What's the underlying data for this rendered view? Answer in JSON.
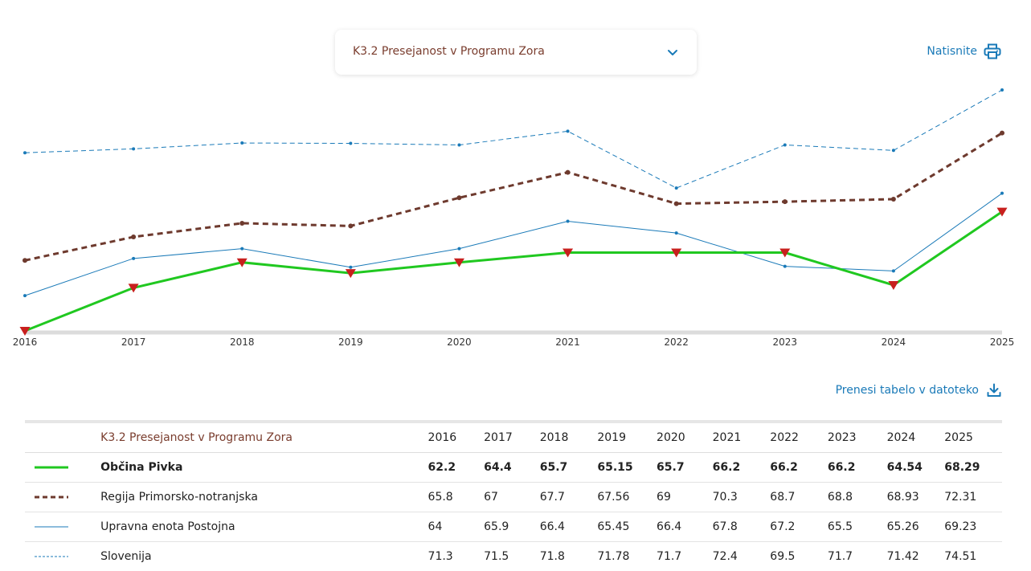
{
  "dropdown": {
    "label": "K3.2 Presejanost v Programu Zora",
    "chevron_icon": "chevron-down-icon"
  },
  "print": {
    "label": "Natisnite",
    "icon": "printer-icon"
  },
  "download": {
    "label": "Prenesi tabelo v datoteko",
    "icon": "download-icon"
  },
  "colors": {
    "link": "#1a7ab8",
    "accent": "#7a3d2e"
  },
  "chart_data": {
    "type": "line",
    "title": "",
    "xlabel": "",
    "ylabel": "",
    "x": [
      "2016",
      "2017",
      "2018",
      "2019",
      "2020",
      "2021",
      "2022",
      "2023",
      "2024",
      "2025"
    ],
    "ylim": [
      62.2,
      74.51
    ],
    "grid": false,
    "series": [
      {
        "name": "Občina Pivka",
        "color": "#20c820",
        "style": "solid-thick",
        "marker": "triangle-down",
        "marker_color": "#c8201e",
        "values": [
          62.2,
          64.4,
          65.7,
          65.15,
          65.7,
          66.2,
          66.2,
          66.2,
          64.54,
          68.29
        ]
      },
      {
        "name": "Regija Primorsko-notranjska",
        "color": "#6e3a2e",
        "style": "dashed-thick",
        "marker": "dot",
        "values": [
          65.8,
          67,
          67.7,
          67.56,
          69,
          70.3,
          68.7,
          68.8,
          68.93,
          72.31
        ]
      },
      {
        "name": "Upravna enota Postojna",
        "color": "#1a7ab8",
        "style": "solid-thin",
        "marker": "dot",
        "values": [
          64,
          65.9,
          66.4,
          65.45,
          66.4,
          67.8,
          67.2,
          65.5,
          65.26,
          69.23
        ]
      },
      {
        "name": "Slovenija",
        "color": "#1a7ab8",
        "style": "dashed-thin",
        "marker": "dot",
        "values": [
          71.3,
          71.5,
          71.8,
          71.78,
          71.7,
          72.4,
          69.5,
          71.7,
          71.42,
          74.51
        ]
      }
    ]
  },
  "table": {
    "title": "K3.2 Presejanost v Programu Zora",
    "years": [
      "2016",
      "2017",
      "2018",
      "2019",
      "2020",
      "2021",
      "2022",
      "2023",
      "2024",
      "2025"
    ],
    "rows": [
      {
        "name": "Občina Pivka",
        "values": [
          "62.2",
          "64.4",
          "65.7",
          "65.15",
          "65.7",
          "66.2",
          "66.2",
          "66.2",
          "64.54",
          "68.29"
        ]
      },
      {
        "name": "Regija Primorsko-notranjska",
        "values": [
          "65.8",
          "67",
          "67.7",
          "67.56",
          "69",
          "70.3",
          "68.7",
          "68.8",
          "68.93",
          "72.31"
        ]
      },
      {
        "name": "Upravna enota Postojna",
        "values": [
          "64",
          "65.9",
          "66.4",
          "65.45",
          "66.4",
          "67.8",
          "67.2",
          "65.5",
          "65.26",
          "69.23"
        ]
      },
      {
        "name": "Slovenija",
        "values": [
          "71.3",
          "71.5",
          "71.8",
          "71.78",
          "71.7",
          "72.4",
          "69.5",
          "71.7",
          "71.42",
          "74.51"
        ]
      }
    ]
  }
}
